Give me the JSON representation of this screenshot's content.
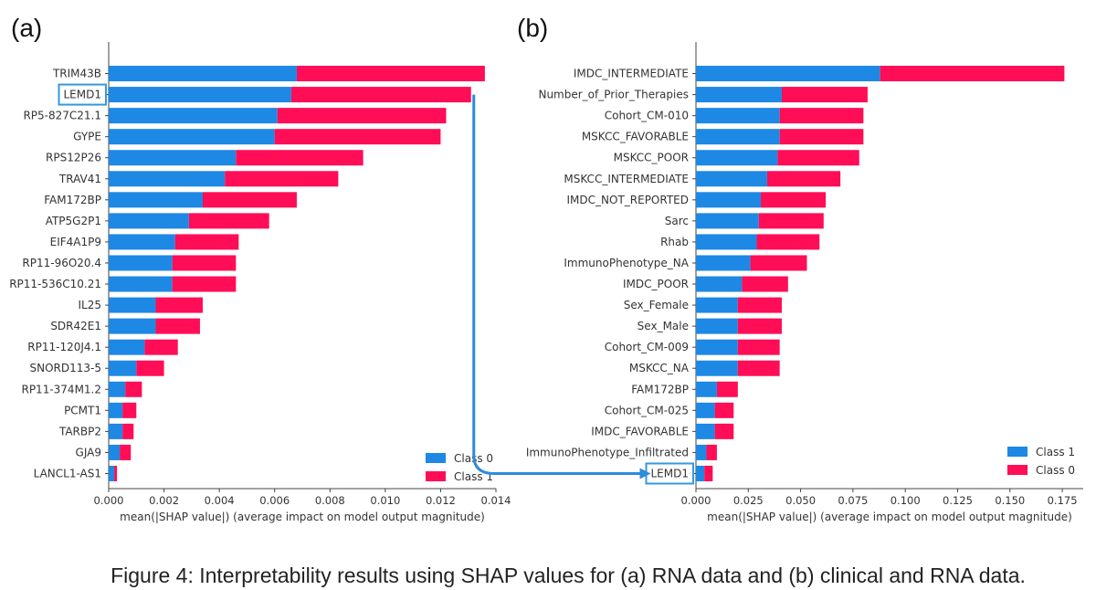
{
  "figure": {
    "caption": "Figure 4: Interpretability results using SHAP values for (a) RNA data and (b) clinical and RNA data."
  },
  "colors": {
    "class_blue": "#1E88E5",
    "class_red": "#FF0D57",
    "highlight_box": "#3399DD",
    "arrow": "#2E8BDB"
  },
  "highlight": {
    "feature": "LEMD1"
  },
  "chart_data": [
    {
      "panel_label": "(a)",
      "type": "bar",
      "orientation": "horizontal",
      "stacked": true,
      "xlabel": "mean(|SHAP value|) (average impact on model output magnitude)",
      "xlim": [
        0,
        0.014
      ],
      "xticks": [
        "0.000",
        "0.002",
        "0.004",
        "0.006",
        "0.008",
        "0.010",
        "0.012",
        "0.014"
      ],
      "xtick_values": [
        0,
        0.002,
        0.004,
        0.006,
        0.008,
        0.01,
        0.012,
        0.014
      ],
      "legend_position": "bottom-right",
      "categories": [
        "TRIM43B",
        "LEMD1",
        "RP5-827C21.1",
        "GYPE",
        "RPS12P26",
        "TRAV41",
        "FAM172BP",
        "ATP5G2P1",
        "EIF4A1P9",
        "RP11-96O20.4",
        "RP11-536C10.21",
        "IL25",
        "SDR42E1",
        "RP11-120J4.1",
        "SNORD113-5",
        "RP11-374M1.2",
        "PCMT1",
        "TARBP2",
        "GJA9",
        "LANCL1-AS1"
      ],
      "series": [
        {
          "name": "Class 0",
          "color": "#1E88E5",
          "values": [
            0.0068,
            0.0066,
            0.0061,
            0.006,
            0.0046,
            0.0042,
            0.0034,
            0.0029,
            0.0024,
            0.0023,
            0.0023,
            0.0017,
            0.0017,
            0.0013,
            0.001,
            0.0006,
            0.0005,
            0.0005,
            0.0004,
            0.0002
          ]
        },
        {
          "name": "Class 1",
          "color": "#FF0D57",
          "values": [
            0.0068,
            0.0065,
            0.0061,
            0.006,
            0.0046,
            0.0041,
            0.0034,
            0.0029,
            0.0023,
            0.0023,
            0.0023,
            0.0017,
            0.0016,
            0.0012,
            0.001,
            0.0006,
            0.0005,
            0.0004,
            0.0004,
            0.0001
          ]
        }
      ]
    },
    {
      "panel_label": "(b)",
      "type": "bar",
      "orientation": "horizontal",
      "stacked": true,
      "xlabel": "mean(|SHAP value|) (average impact on model output magnitude)",
      "xlim": [
        0,
        0.185
      ],
      "xticks": [
        "0.000",
        "0.025",
        "0.050",
        "0.075",
        "0.100",
        "0.125",
        "0.150",
        "0.175"
      ],
      "xtick_values": [
        0,
        0.025,
        0.05,
        0.075,
        0.1,
        0.125,
        0.15,
        0.175
      ],
      "legend_position": "bottom-right",
      "categories": [
        "IMDC_INTERMEDIATE",
        "Number_of_Prior_Therapies",
        "Cohort_CM-010",
        "MSKCC_FAVORABLE",
        "MSKCC_POOR",
        "MSKCC_INTERMEDIATE",
        "IMDC_NOT_REPORTED",
        "Sarc",
        "Rhab",
        "ImmunoPhenotype_NA",
        "IMDC_POOR",
        "Sex_Female",
        "Sex_Male",
        "Cohort_CM-009",
        "MSKCC_NA",
        "FAM172BP",
        "Cohort_CM-025",
        "IMDC_FAVORABLE",
        "ImmunoPhenotype_Infiltrated",
        "LEMD1"
      ],
      "series": [
        {
          "name": "Class 1",
          "color": "#1E88E5",
          "values": [
            0.088,
            0.041,
            0.04,
            0.04,
            0.039,
            0.034,
            0.031,
            0.03,
            0.029,
            0.026,
            0.022,
            0.02,
            0.02,
            0.02,
            0.02,
            0.01,
            0.009,
            0.009,
            0.005,
            0.004
          ]
        },
        {
          "name": "Class 0",
          "color": "#FF0D57",
          "values": [
            0.088,
            0.041,
            0.04,
            0.04,
            0.039,
            0.035,
            0.031,
            0.031,
            0.03,
            0.027,
            0.022,
            0.021,
            0.021,
            0.02,
            0.02,
            0.01,
            0.009,
            0.009,
            0.005,
            0.004
          ]
        }
      ]
    }
  ]
}
